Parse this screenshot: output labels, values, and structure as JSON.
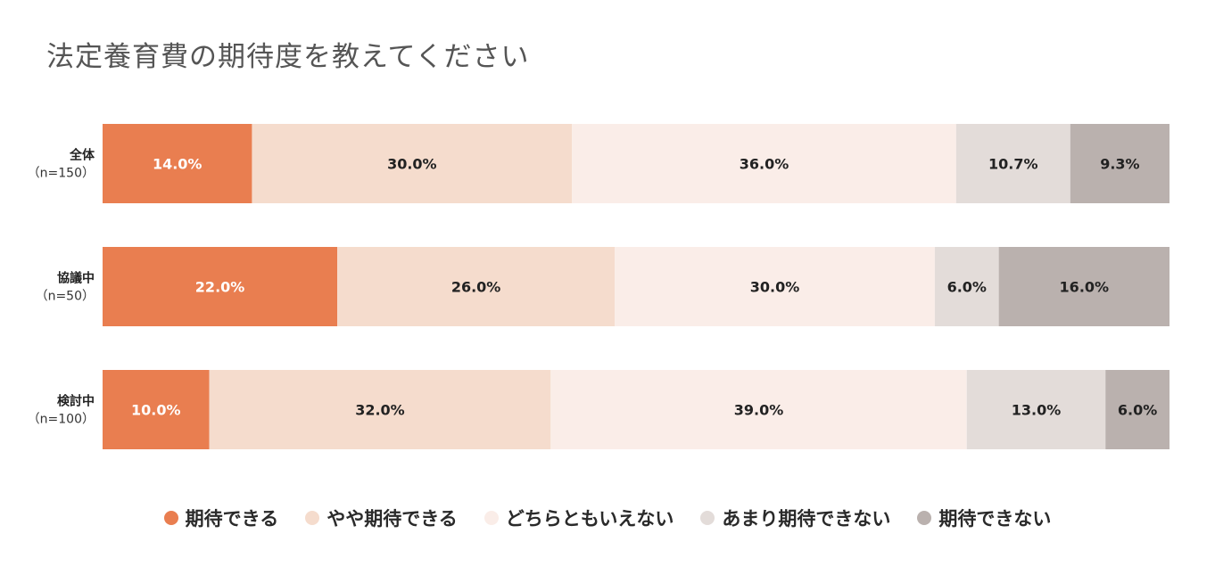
{
  "title": "法定養育費の期待度を教えてください",
  "chart_data": {
    "type": "bar",
    "orientation": "horizontal",
    "stacked": true,
    "normalized_percent": true,
    "categories": [
      {
        "label": "全体",
        "sub": "（n=150）"
      },
      {
        "label": "協議中",
        "sub": "（n=50）"
      },
      {
        "label": "検討中",
        "sub": "（n=100）"
      }
    ],
    "series": [
      {
        "name": "期待できる",
        "color": "#E97E50",
        "label_color": "#ffffff",
        "values": [
          14.0,
          22.0,
          10.0
        ]
      },
      {
        "name": "やや期待できる",
        "color": "#F5DCCD",
        "label_color": "#222222",
        "values": [
          30.0,
          26.0,
          32.0
        ]
      },
      {
        "name": "どちらともいえない",
        "color": "#FAEDE8",
        "label_color": "#222222",
        "values": [
          36.0,
          30.0,
          39.0
        ]
      },
      {
        "name": "あまり期待できない",
        "color": "#E3DCD9",
        "label_color": "#222222",
        "values": [
          10.7,
          6.0,
          13.0
        ]
      },
      {
        "name": "期待できない",
        "color": "#BAB1AE",
        "label_color": "#222222",
        "values": [
          9.3,
          16.0,
          6.0
        ]
      }
    ],
    "value_format": "{v}%",
    "grid": false,
    "legend_position": "bottom"
  }
}
